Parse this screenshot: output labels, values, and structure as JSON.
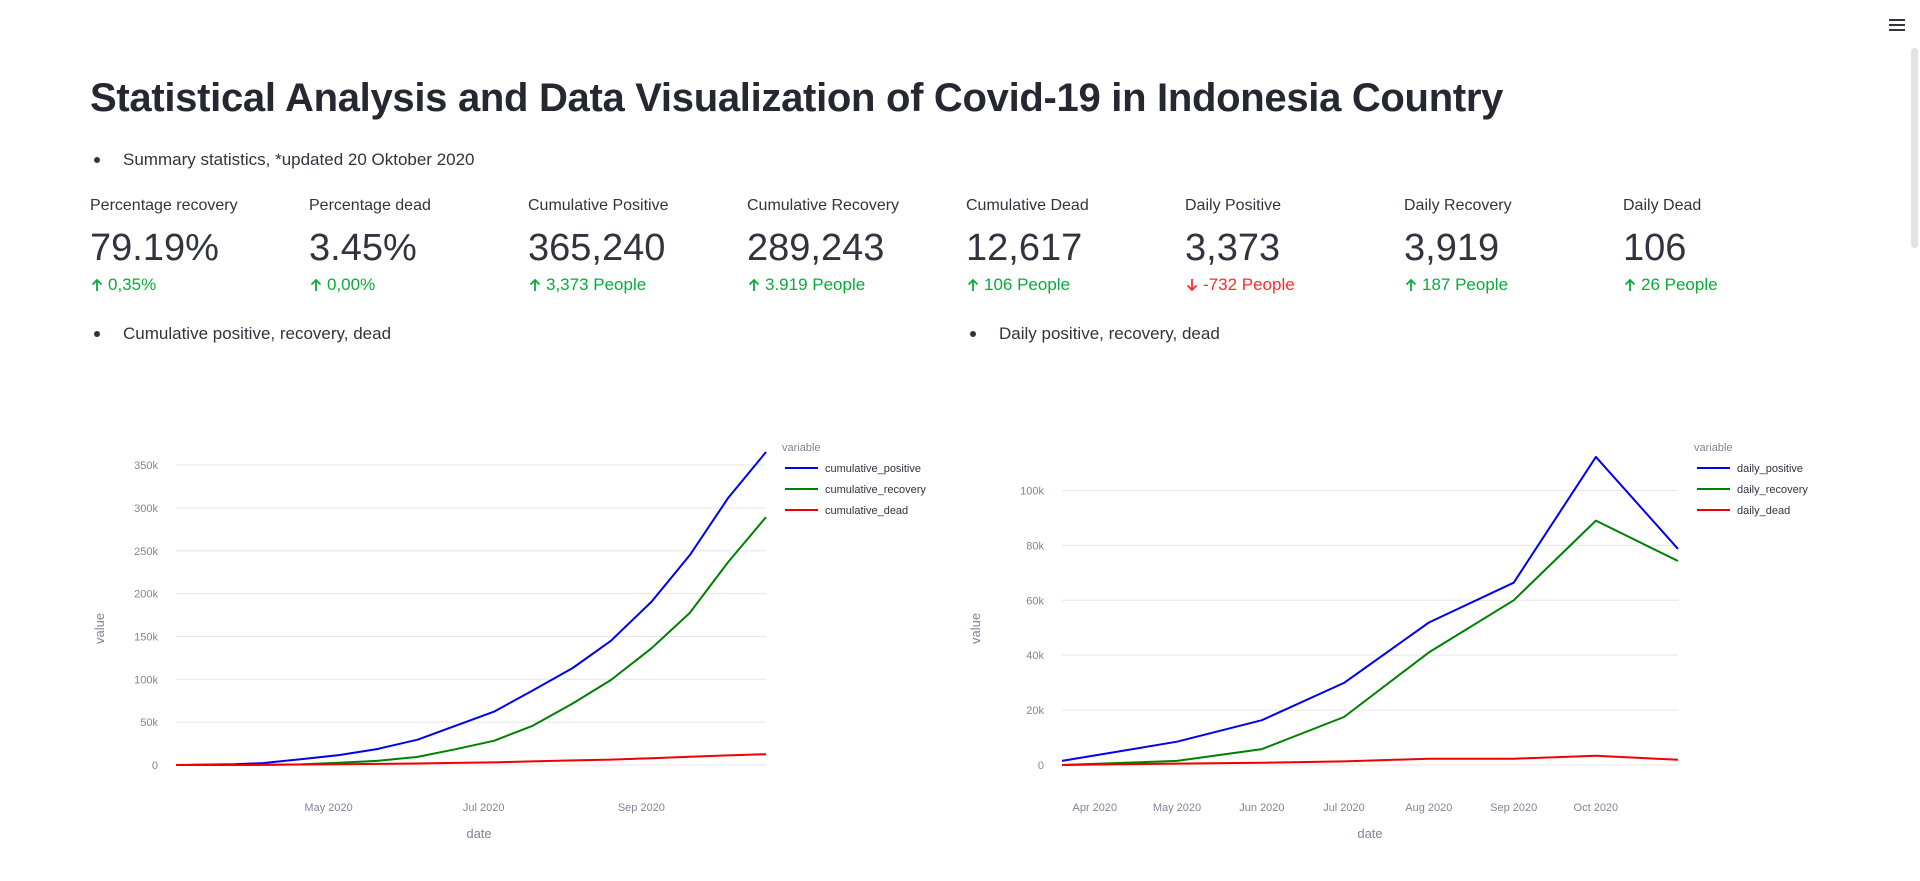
{
  "page": {
    "title": "Statistical Analysis and Data Visualization of Covid-19 in Indonesia Country",
    "menu_icon": "hamburger-menu-icon"
  },
  "bullets": {
    "summary": "Summary statistics, *updated 20 Oktober 2020",
    "cumulative": "Cumulative positive, recovery, dead",
    "daily": "Daily positive, recovery, dead"
  },
  "metrics": [
    {
      "label": "Percentage recovery",
      "value": "79.19%",
      "delta": "0,35%",
      "direction": "up"
    },
    {
      "label": "Percentage dead",
      "value": "3.45%",
      "delta": "0,00%",
      "direction": "up"
    },
    {
      "label": "Cumulative Positive",
      "value": "365,240",
      "delta": "3,373 People",
      "direction": "up"
    },
    {
      "label": "Cumulative Recovery",
      "value": "289,243",
      "delta": "3.919 People",
      "direction": "up"
    },
    {
      "label": "Cumulative Dead",
      "value": "12,617",
      "delta": "106 People",
      "direction": "up"
    },
    {
      "label": "Daily Positive",
      "value": "3,373",
      "delta": "-732 People",
      "direction": "down"
    },
    {
      "label": "Daily Recovery",
      "value": "3,919",
      "delta": "187 People",
      "direction": "up"
    },
    {
      "label": "Daily Dead",
      "value": "106",
      "delta": "26 People",
      "direction": "up"
    }
  ],
  "colors": {
    "up": "#09ab3b",
    "down": "#ff2b2b"
  },
  "chart_data": [
    {
      "type": "line",
      "title": "",
      "xlabel": "date",
      "ylabel": "value",
      "legend_title": "variable",
      "legend_position": "top-right",
      "grid": true,
      "x_range": [
        "2020-03-02",
        "2020-10-20"
      ],
      "ylim": [
        0,
        365240
      ],
      "x_ticks": [
        {
          "date": "2020-05-01",
          "label": "May 2020"
        },
        {
          "date": "2020-07-01",
          "label": "Jul 2020"
        },
        {
          "date": "2020-09-01",
          "label": "Sep 2020"
        }
      ],
      "y_ticks": [
        {
          "value": 0,
          "label": "0"
        },
        {
          "value": 50000,
          "label": "50k"
        },
        {
          "value": 100000,
          "label": "100k"
        },
        {
          "value": 150000,
          "label": "150k"
        },
        {
          "value": 200000,
          "label": "200k"
        },
        {
          "value": 250000,
          "label": "250k"
        },
        {
          "value": 300000,
          "label": "300k"
        },
        {
          "value": 350000,
          "label": "350k"
        }
      ],
      "x": [
        "2020-03-02",
        "2020-03-25",
        "2020-04-05",
        "2020-04-20",
        "2020-05-05",
        "2020-05-20",
        "2020-06-05",
        "2020-06-20",
        "2020-07-05",
        "2020-07-20",
        "2020-08-05",
        "2020-08-20",
        "2020-09-05",
        "2020-09-20",
        "2020-10-05",
        "2020-10-20"
      ],
      "series": [
        {
          "name": "cumulative_positive",
          "color": "#0000ee",
          "values": [
            2,
            790,
            2273,
            6760,
            11587,
            18496,
            29521,
            45891,
            62142,
            86521,
            113134,
            144945,
            190665,
            244676,
            311176,
            365240
          ]
        },
        {
          "name": "cumulative_recovery",
          "color": "#008000",
          "values": [
            0,
            31,
            150,
            747,
            2607,
            4838,
            9443,
            18404,
            28219,
            45401,
            71815,
            99152,
            136345,
            177327,
            236437,
            289243
          ]
        },
        {
          "name": "cumulative_dead",
          "color": "#ee0000",
          "values": [
            0,
            58,
            191,
            590,
            894,
            1242,
            1721,
            2500,
            3089,
            4143,
            5388,
            6346,
            7940,
            9677,
            11151,
            12617
          ]
        }
      ]
    },
    {
      "type": "line",
      "title": "",
      "xlabel": "date",
      "ylabel": "value",
      "legend_title": "variable",
      "legend_position": "top-right",
      "grid": true,
      "x_range": [
        "2020-03-20",
        "2020-10-31"
      ],
      "ylim": [
        0,
        114000
      ],
      "x_ticks": [
        {
          "date": "2020-04-01",
          "label": "Apr 2020"
        },
        {
          "date": "2020-05-01",
          "label": "May 2020"
        },
        {
          "date": "2020-06-01",
          "label": "Jun 2020"
        },
        {
          "date": "2020-07-01",
          "label": "Jul 2020"
        },
        {
          "date": "2020-08-01",
          "label": "Aug 2020"
        },
        {
          "date": "2020-09-01",
          "label": "Sep 2020"
        },
        {
          "date": "2020-10-01",
          "label": "Oct 2020"
        }
      ],
      "y_ticks": [
        {
          "value": 0,
          "label": "0"
        },
        {
          "value": 20000,
          "label": "20k"
        },
        {
          "value": 40000,
          "label": "40k"
        },
        {
          "value": 60000,
          "label": "60k"
        },
        {
          "value": 80000,
          "label": "80k"
        },
        {
          "value": 100000,
          "label": "100k"
        }
      ],
      "x": [
        "2020-03-20",
        "2020-05-01",
        "2020-06-01",
        "2020-07-01",
        "2020-08-01",
        "2020-09-01",
        "2020-10-01",
        "2020-10-31"
      ],
      "series": [
        {
          "name": "daily_positive",
          "color": "#0000ee",
          "values": [
            1500,
            8500,
            16300,
            29900,
            51900,
            66400,
            112200,
            78700
          ]
        },
        {
          "name": "daily_recovery",
          "color": "#008000",
          "values": [
            0,
            1500,
            5800,
            17500,
            41000,
            60000,
            89000,
            74300
          ]
        },
        {
          "name": "daily_dead",
          "color": "#ee0000",
          "values": [
            0,
            500,
            800,
            1300,
            2300,
            2300,
            3400,
            1900
          ]
        }
      ]
    }
  ]
}
